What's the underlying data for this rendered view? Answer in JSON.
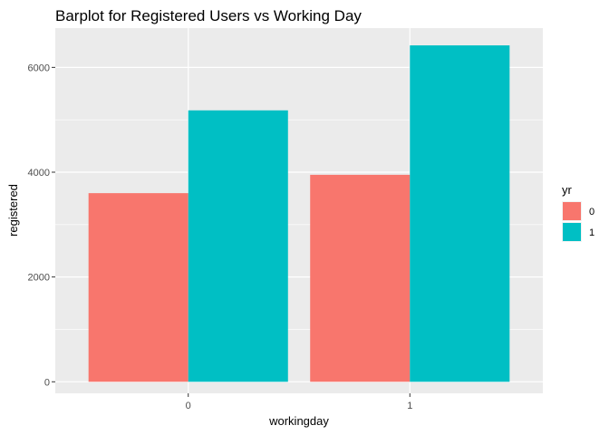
{
  "chart_data": {
    "type": "bar",
    "title": "Barplot for Registered Users vs Working Day",
    "xlabel": "workingday",
    "ylabel": "registered",
    "categories": [
      "0",
      "1"
    ],
    "series": [
      {
        "name": "0",
        "values": [
          3600,
          3950
        ]
      },
      {
        "name": "1",
        "values": [
          5180,
          6420
        ]
      }
    ],
    "ylim": [
      -220,
      6750
    ],
    "yticks": [
      0,
      2000,
      4000,
      6000
    ],
    "yticklabels": [
      "0",
      "2000",
      "4000",
      "6000"
    ],
    "grid": true,
    "position": "dodge",
    "legend": {
      "title": "yr",
      "placement": "right"
    },
    "colors": [
      "#F8766D",
      "#00BFC4"
    ],
    "panel_background": "#EBEBEB",
    "grid_color": "#FFFFFF"
  }
}
